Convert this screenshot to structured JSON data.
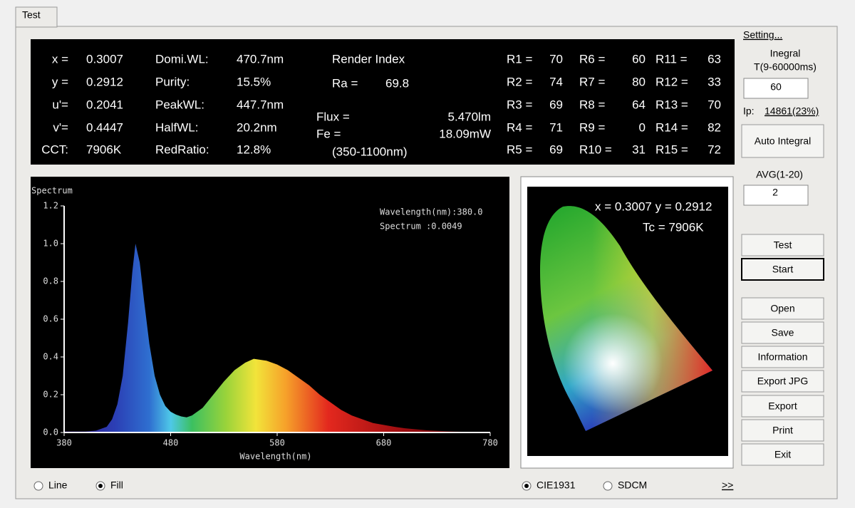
{
  "tab": "Test",
  "chromaticity": [
    [
      "x =",
      "0.3007"
    ],
    [
      "y =",
      "0.2912"
    ],
    [
      "u'=",
      "0.2041"
    ],
    [
      "v'=",
      "0.4447"
    ],
    [
      "CCT:",
      "7906K"
    ]
  ],
  "wavelength_info": [
    [
      "Domi.WL:",
      "470.7nm"
    ],
    [
      "Purity:",
      "15.5%"
    ],
    [
      "PeakWL:",
      "447.7nm"
    ],
    [
      "HalfWL:",
      "20.2nm"
    ],
    [
      "RedRatio:",
      "12.8%"
    ]
  ],
  "render_index": {
    "title": "Render Index",
    "ra_label": "Ra =",
    "ra": "69.8"
  },
  "flux": {
    "flux_label": "Flux =",
    "flux": "5.470lm",
    "fe_label": "Fe =",
    "fe": "18.09mW",
    "range": "(350-1100nm)"
  },
  "r_values": [
    [
      "R1 =",
      "70"
    ],
    [
      "R2 =",
      "74"
    ],
    [
      "R3 =",
      "69"
    ],
    [
      "R4 =",
      "71"
    ],
    [
      "R5 =",
      "69"
    ],
    [
      "R6 =",
      "60"
    ],
    [
      "R7 =",
      "80"
    ],
    [
      "R8 =",
      "64"
    ],
    [
      "R9 =",
      "0"
    ],
    [
      "R10 =",
      "31"
    ],
    [
      "R11 =",
      "63"
    ],
    [
      "R12 =",
      "33"
    ],
    [
      "R13 =",
      "70"
    ],
    [
      "R14 =",
      "82"
    ],
    [
      "R15 =",
      "72"
    ]
  ],
  "chart_data": {
    "type": "area",
    "title": "Spectrum",
    "x_label": "Wavelength(nm)",
    "cursor_readout": [
      "Wavelength(nm):380.0",
      "Spectrum :0.0049"
    ],
    "x": [
      380,
      400,
      410,
      420,
      425,
      430,
      435,
      440,
      444,
      447,
      451,
      455,
      460,
      465,
      470,
      475,
      480,
      485,
      490,
      495,
      500,
      510,
      520,
      530,
      540,
      550,
      558,
      570,
      580,
      590,
      600,
      610,
      620,
      630,
      640,
      650,
      660,
      670,
      680,
      690,
      700,
      720,
      740,
      760,
      780
    ],
    "values": [
      0.005,
      0.005,
      0.01,
      0.03,
      0.07,
      0.15,
      0.3,
      0.58,
      0.85,
      1.0,
      0.9,
      0.7,
      0.47,
      0.3,
      0.2,
      0.14,
      0.11,
      0.095,
      0.085,
      0.08,
      0.09,
      0.13,
      0.2,
      0.27,
      0.33,
      0.37,
      0.39,
      0.38,
      0.36,
      0.33,
      0.29,
      0.25,
      0.2,
      0.16,
      0.12,
      0.09,
      0.07,
      0.05,
      0.04,
      0.03,
      0.022,
      0.012,
      0.006,
      0.003,
      0.001
    ],
    "xlim": [
      380,
      780
    ],
    "ylim": [
      0,
      1.2
    ],
    "xticks": [
      380,
      480,
      580,
      680,
      780
    ],
    "yticks": [
      {
        "value": 0,
        "label": "0.0"
      },
      {
        "value": 0.2,
        "label": "0.2"
      },
      {
        "value": 0.4,
        "label": "0.4"
      },
      {
        "value": 0.6,
        "label": "0.6"
      },
      {
        "value": 0.8,
        "label": "0.8"
      },
      {
        "value": 1,
        "label": "1.0"
      },
      {
        "value": 1.2,
        "label": "1.2"
      }
    ]
  },
  "cie": {
    "xy": "x = 0.3007 y = 0.2912",
    "tc": "Tc = 7906K"
  },
  "side": {
    "setting": "Setting...",
    "integral_title": [
      "Inegral",
      "T(9-60000ms)"
    ],
    "integral": "60",
    "ip_label": "Ip:",
    "ip": "14861(23%)",
    "auto": "Auto Integral",
    "avg_title": "AVG(1-20)",
    "avg": "2",
    "buttons": [
      "Test",
      "Start",
      "Open",
      "Save",
      "Information",
      "Export JPG",
      "Export",
      "Print",
      "Exit"
    ]
  },
  "display_mode": [
    {
      "label": "Line",
      "checked": false
    },
    {
      "label": "Fill",
      "checked": true
    }
  ],
  "diagram_mode": [
    {
      "label": "CIE1931",
      "checked": true
    },
    {
      "label": "SDCM",
      "checked": false
    }
  ],
  "more": ">>"
}
